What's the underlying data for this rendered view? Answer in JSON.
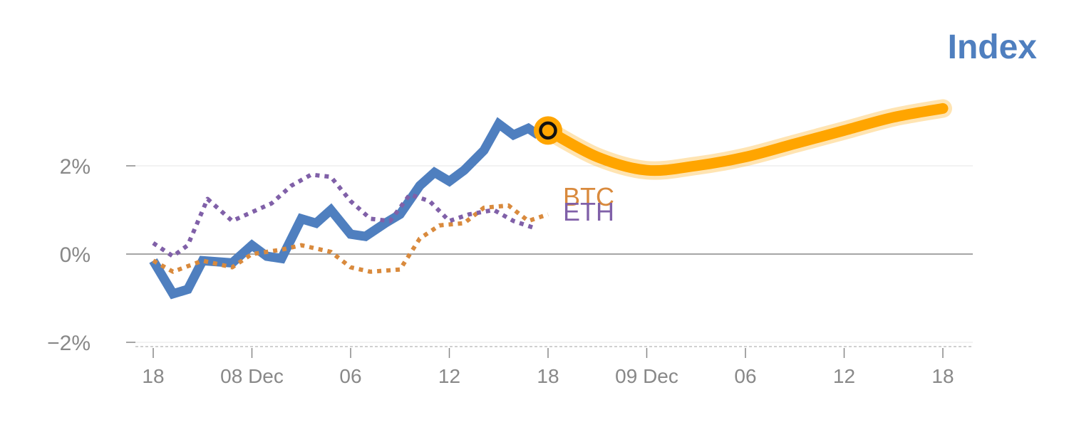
{
  "chart_data": {
    "type": "line",
    "title": "Index",
    "xlabel": "",
    "ylabel": "",
    "y_ticks": [
      {
        "value": 2,
        "label": "2%"
      },
      {
        "value": 0,
        "label": "0%"
      },
      {
        "value": -2,
        "label": "−2%"
      }
    ],
    "ylim": [
      -2.1,
      3.6
    ],
    "x_ticks": [
      "18",
      "08 Dec",
      "06",
      "12",
      "18",
      "09 Dec",
      "06",
      "12",
      "18"
    ],
    "x_range": [
      -0.2,
      8.3
    ],
    "grid": true,
    "series": [
      {
        "name": "Index",
        "color": "#4f7fbf",
        "style": "solid",
        "x": [
          0,
          0.2,
          0.35,
          0.5,
          0.8,
          1.0,
          1.15,
          1.3,
          1.5,
          1.65,
          1.8,
          2.0,
          2.15,
          2.35,
          2.5,
          2.7,
          2.85,
          3.0,
          3.15,
          3.35,
          3.5,
          3.65,
          3.8,
          3.9
        ],
        "values": [
          -0.15,
          -0.9,
          -0.8,
          -0.15,
          -0.2,
          0.2,
          -0.05,
          -0.1,
          0.8,
          0.7,
          1.0,
          0.45,
          0.4,
          0.7,
          0.9,
          1.55,
          1.85,
          1.65,
          1.9,
          2.35,
          2.95,
          2.7,
          2.85,
          2.7
        ]
      },
      {
        "name": "BTC",
        "color": "#d98a3d",
        "style": "dotted",
        "x": [
          0,
          0.2,
          0.5,
          0.8,
          1.0,
          1.3,
          1.5,
          1.8,
          2.0,
          2.2,
          2.5,
          2.7,
          2.9,
          3.15,
          3.35,
          3.6,
          3.8,
          4.0
        ],
        "values": [
          -0.15,
          -0.4,
          -0.15,
          -0.3,
          0.0,
          0.1,
          0.2,
          0.05,
          -0.3,
          -0.4,
          -0.35,
          0.35,
          0.65,
          0.7,
          1.05,
          1.1,
          0.75,
          0.9
        ]
      },
      {
        "name": "ETH",
        "color": "#8060a8",
        "style": "dotted",
        "x": [
          0,
          0.2,
          0.35,
          0.55,
          0.8,
          1.0,
          1.2,
          1.4,
          1.6,
          1.8,
          2.0,
          2.2,
          2.4,
          2.6,
          2.8,
          3.0,
          3.2,
          3.45,
          3.65,
          3.85
        ],
        "values": [
          0.25,
          -0.05,
          0.2,
          1.25,
          0.75,
          0.95,
          1.15,
          1.55,
          1.8,
          1.75,
          1.2,
          0.8,
          0.75,
          1.35,
          1.2,
          0.75,
          0.9,
          1.0,
          0.75,
          0.6
        ]
      },
      {
        "name": "Index forecast",
        "color": "#ffa500",
        "style": "thick",
        "x": [
          4.0,
          4.5,
          5.0,
          5.5,
          6.0,
          6.5,
          7.0,
          7.5,
          8.0
        ],
        "values": [
          2.8,
          2.2,
          1.9,
          2.0,
          2.2,
          2.5,
          2.8,
          3.1,
          3.3
        ]
      }
    ],
    "labels": [
      {
        "text": "BTC",
        "series": "BTC"
      },
      {
        "text": "ETH",
        "series": "ETH"
      }
    ]
  }
}
